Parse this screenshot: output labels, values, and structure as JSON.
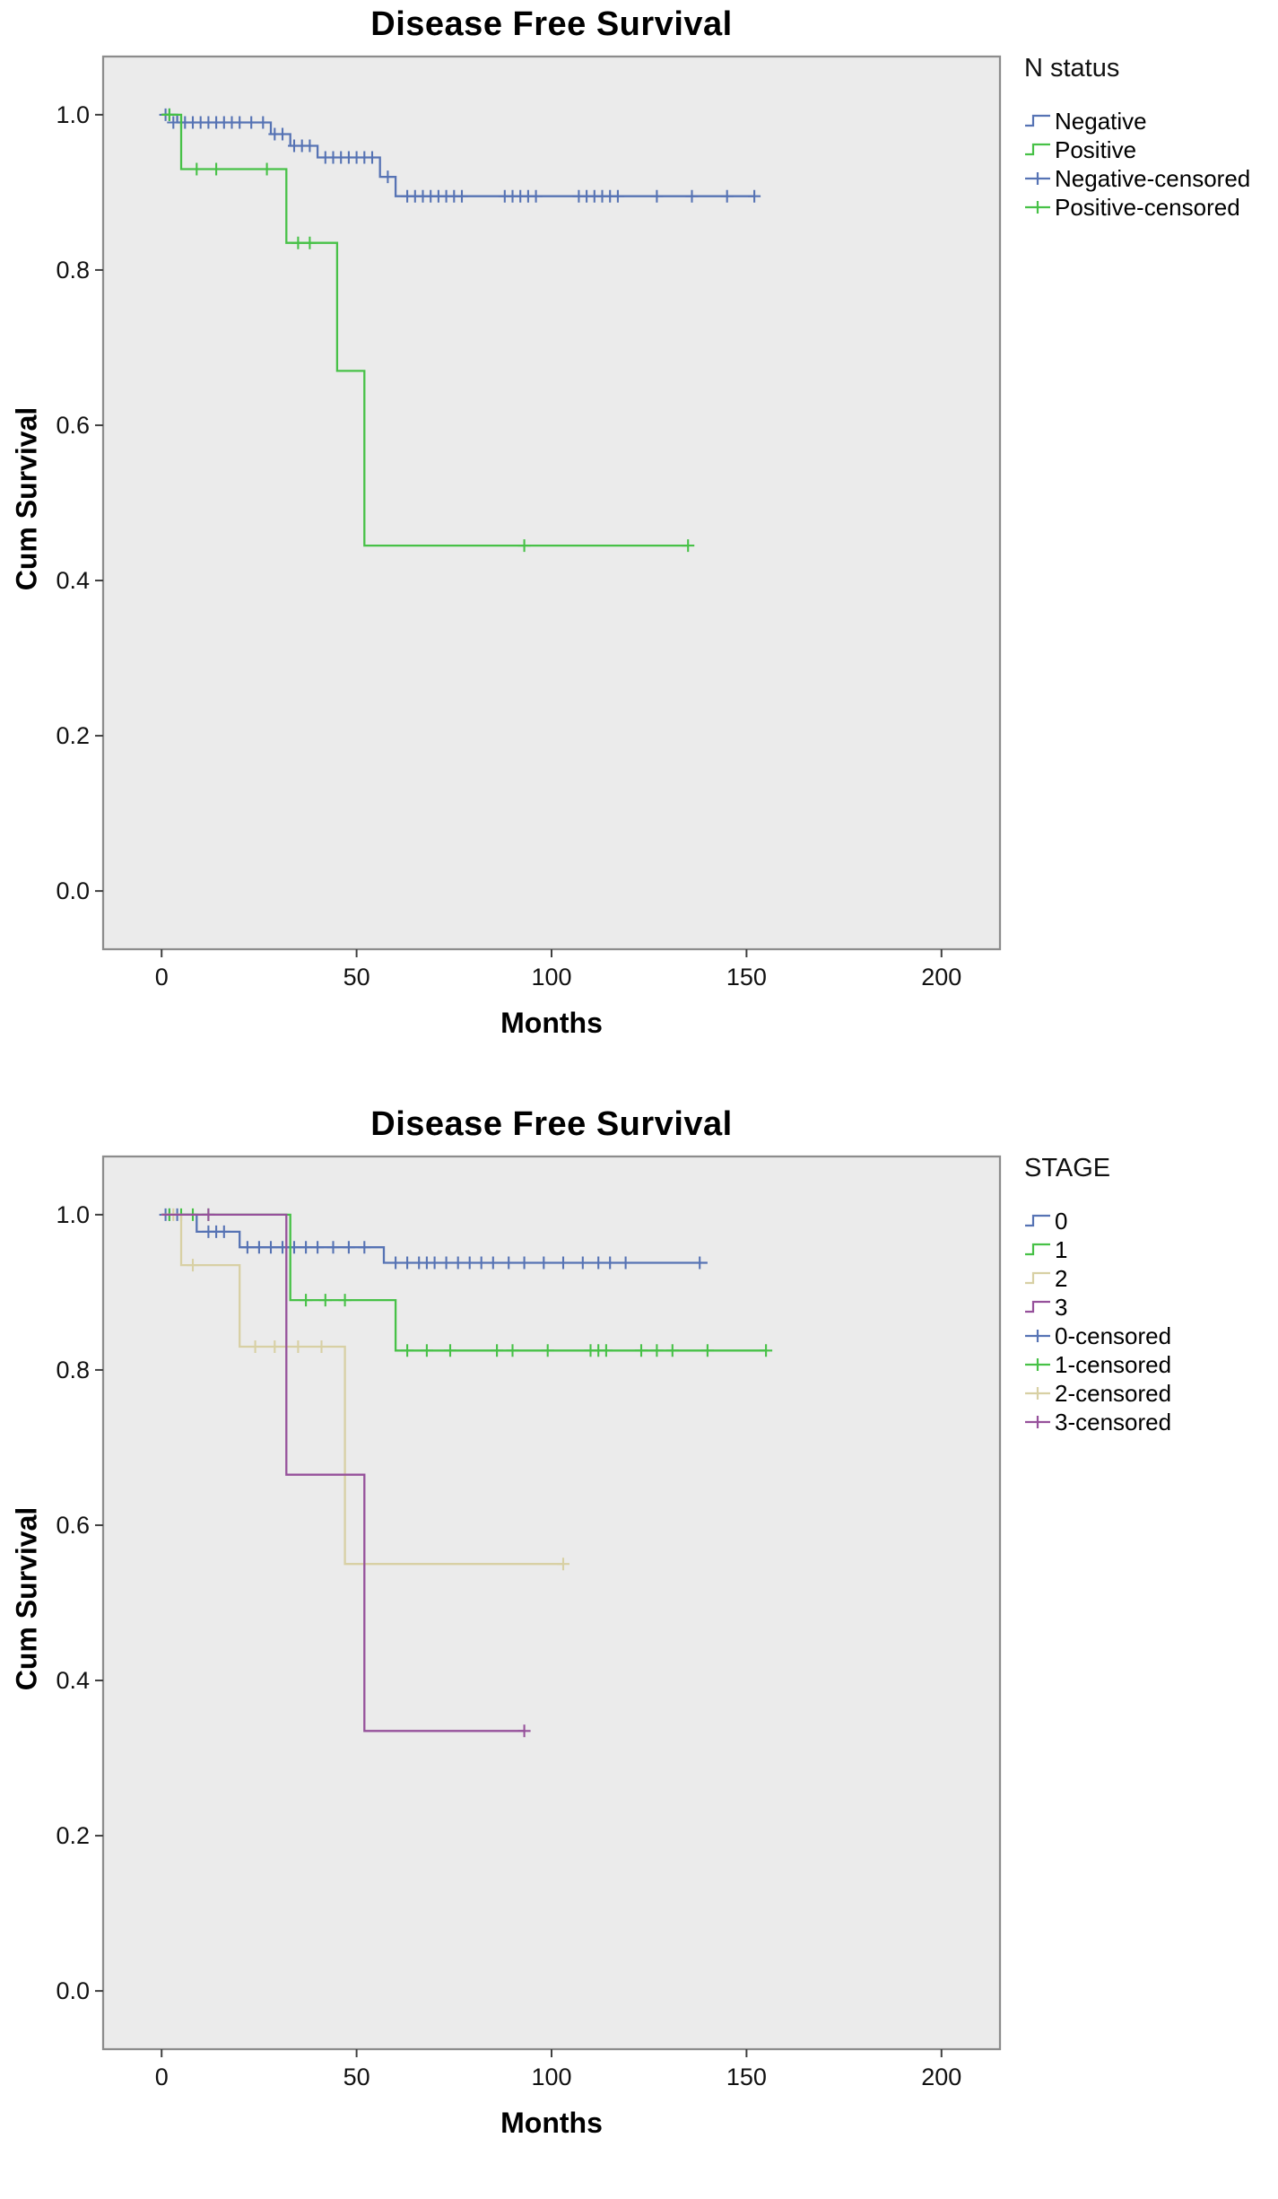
{
  "chart_data": [
    {
      "type": "line",
      "subtype": "kaplan-meier-step",
      "title": "Disease Free Survival",
      "xlabel": "Months",
      "ylabel": "Cum Survival",
      "legend_title": "N status",
      "legend_position": "right",
      "grid": false,
      "background": "#ebebeb",
      "frame_color": "#8c8c8c",
      "xlim": [
        -15,
        215
      ],
      "ylim": [
        -0.075,
        1.075
      ],
      "xticks": [
        0,
        50,
        100,
        150,
        200
      ],
      "xtick_labels": [
        "0",
        "50",
        "100",
        "150",
        "200"
      ],
      "yticks": [
        0,
        0.2,
        0.4,
        0.6,
        0.8,
        1.0
      ],
      "ytick_labels": [
        "0.0",
        "0.2",
        "0.4",
        "0.6",
        "0.8",
        "1.0"
      ],
      "series": [
        {
          "name": "Negative",
          "color": "#5673b4",
          "points": [
            [
              0,
              1.0
            ],
            [
              4,
              0.99
            ],
            [
              28,
              0.975
            ],
            [
              33,
              0.96
            ],
            [
              40,
              0.945
            ],
            [
              56,
              0.92
            ],
            [
              60,
              0.895
            ],
            [
              152,
              0.895
            ]
          ],
          "censored": [
            [
              1,
              1.0
            ],
            [
              2,
              1.0
            ],
            [
              3,
              0.99
            ],
            [
              5,
              0.99
            ],
            [
              6,
              0.99
            ],
            [
              8,
              0.99
            ],
            [
              10,
              0.99
            ],
            [
              12,
              0.99
            ],
            [
              14,
              0.99
            ],
            [
              16,
              0.99
            ],
            [
              18,
              0.99
            ],
            [
              20,
              0.99
            ],
            [
              23,
              0.99
            ],
            [
              26,
              0.99
            ],
            [
              29,
              0.975
            ],
            [
              31,
              0.975
            ],
            [
              34,
              0.96
            ],
            [
              36,
              0.96
            ],
            [
              38,
              0.96
            ],
            [
              42,
              0.945
            ],
            [
              44,
              0.945
            ],
            [
              46,
              0.945
            ],
            [
              48,
              0.945
            ],
            [
              50,
              0.945
            ],
            [
              52,
              0.945
            ],
            [
              54,
              0.945
            ],
            [
              58,
              0.92
            ],
            [
              63,
              0.895
            ],
            [
              65,
              0.895
            ],
            [
              67,
              0.895
            ],
            [
              69,
              0.895
            ],
            [
              71,
              0.895
            ],
            [
              73,
              0.895
            ],
            [
              75,
              0.895
            ],
            [
              77,
              0.895
            ],
            [
              88,
              0.895
            ],
            [
              90,
              0.895
            ],
            [
              92,
              0.895
            ],
            [
              94,
              0.895
            ],
            [
              96,
              0.895
            ],
            [
              107,
              0.895
            ],
            [
              109,
              0.895
            ],
            [
              111,
              0.895
            ],
            [
              113,
              0.895
            ],
            [
              115,
              0.895
            ],
            [
              117,
              0.895
            ],
            [
              127,
              0.895
            ],
            [
              136,
              0.895
            ],
            [
              145,
              0.895
            ],
            [
              152,
              0.895
            ]
          ]
        },
        {
          "name": "Positive",
          "color": "#47c147",
          "points": [
            [
              0,
              1.0
            ],
            [
              5,
              0.93
            ],
            [
              32,
              0.835
            ],
            [
              45,
              0.67
            ],
            [
              52,
              0.445
            ],
            [
              135,
              0.445
            ]
          ],
          "censored": [
            [
              2,
              1.0
            ],
            [
              9,
              0.93
            ],
            [
              14,
              0.93
            ],
            [
              27,
              0.93
            ],
            [
              35,
              0.835
            ],
            [
              38,
              0.835
            ],
            [
              93,
              0.445
            ],
            [
              135,
              0.445
            ]
          ]
        }
      ],
      "legend": [
        {
          "label": "Negative",
          "color": "#5673b4",
          "marker": "line"
        },
        {
          "label": "Positive",
          "color": "#47c147",
          "marker": "line"
        },
        {
          "label": "Negative-censored",
          "color": "#5673b4",
          "marker": "plus"
        },
        {
          "label": "Positive-censored",
          "color": "#47c147",
          "marker": "plus"
        }
      ]
    },
    {
      "type": "line",
      "subtype": "kaplan-meier-step",
      "title": "Disease Free Survival",
      "xlabel": "Months",
      "ylabel": "Cum Survival",
      "legend_title": "STAGE",
      "legend_position": "right",
      "grid": false,
      "background": "#ebebeb",
      "frame_color": "#8c8c8c",
      "xlim": [
        -15,
        215
      ],
      "ylim": [
        -0.075,
        1.075
      ],
      "xticks": [
        0,
        50,
        100,
        150,
        200
      ],
      "xtick_labels": [
        "0",
        "50",
        "100",
        "150",
        "200"
      ],
      "yticks": [
        0,
        0.2,
        0.4,
        0.6,
        0.8,
        1.0
      ],
      "ytick_labels": [
        "0.0",
        "0.2",
        "0.4",
        "0.6",
        "0.8",
        "1.0"
      ],
      "series": [
        {
          "name": "0",
          "color": "#5673b4",
          "points": [
            [
              0,
              1.0
            ],
            [
              9,
              0.978
            ],
            [
              20,
              0.958
            ],
            [
              57,
              0.938
            ],
            [
              140,
              0.938
            ]
          ],
          "censored": [
            [
              1,
              1.0
            ],
            [
              2,
              1.0
            ],
            [
              4,
              1.0
            ],
            [
              12,
              0.978
            ],
            [
              14,
              0.978
            ],
            [
              16,
              0.978
            ],
            [
              22,
              0.958
            ],
            [
              25,
              0.958
            ],
            [
              28,
              0.958
            ],
            [
              31,
              0.958
            ],
            [
              34,
              0.958
            ],
            [
              37,
              0.958
            ],
            [
              40,
              0.958
            ],
            [
              44,
              0.958
            ],
            [
              48,
              0.958
            ],
            [
              52,
              0.958
            ],
            [
              60,
              0.938
            ],
            [
              63,
              0.938
            ],
            [
              66,
              0.938
            ],
            [
              68,
              0.938
            ],
            [
              70,
              0.938
            ],
            [
              73,
              0.938
            ],
            [
              76,
              0.938
            ],
            [
              79,
              0.938
            ],
            [
              82,
              0.938
            ],
            [
              85,
              0.938
            ],
            [
              89,
              0.938
            ],
            [
              93,
              0.938
            ],
            [
              98,
              0.938
            ],
            [
              103,
              0.938
            ],
            [
              108,
              0.938
            ],
            [
              112,
              0.938
            ],
            [
              115,
              0.938
            ],
            [
              119,
              0.938
            ],
            [
              138,
              0.938
            ]
          ]
        },
        {
          "name": "1",
          "color": "#47c147",
          "points": [
            [
              0,
              1.0
            ],
            [
              33,
              0.89
            ],
            [
              60,
              0.825
            ],
            [
              155,
              0.825
            ]
          ],
          "censored": [
            [
              2,
              1.0
            ],
            [
              5,
              1.0
            ],
            [
              8,
              1.0
            ],
            [
              12,
              1.0
            ],
            [
              37,
              0.89
            ],
            [
              42,
              0.89
            ],
            [
              47,
              0.89
            ],
            [
              63,
              0.825
            ],
            [
              68,
              0.825
            ],
            [
              74,
              0.825
            ],
            [
              86,
              0.825
            ],
            [
              90,
              0.825
            ],
            [
              99,
              0.825
            ],
            [
              110,
              0.825
            ],
            [
              112,
              0.825
            ],
            [
              114,
              0.825
            ],
            [
              123,
              0.825
            ],
            [
              127,
              0.825
            ],
            [
              131,
              0.825
            ],
            [
              140,
              0.825
            ],
            [
              155,
              0.825
            ]
          ]
        },
        {
          "name": "2",
          "color": "#d8d0a4",
          "points": [
            [
              0,
              1.0
            ],
            [
              5,
              0.935
            ],
            [
              20,
              0.83
            ],
            [
              47,
              0.55
            ],
            [
              103,
              0.55
            ]
          ],
          "censored": [
            [
              3,
              1.0
            ],
            [
              8,
              0.935
            ],
            [
              24,
              0.83
            ],
            [
              29,
              0.83
            ],
            [
              35,
              0.83
            ],
            [
              41,
              0.83
            ],
            [
              103,
              0.55
            ]
          ]
        },
        {
          "name": "3",
          "color": "#96519b",
          "points": [
            [
              0,
              1.0
            ],
            [
              32,
              0.665
            ],
            [
              52,
              0.335
            ],
            [
              93,
              0.335
            ]
          ],
          "censored": [
            [
              12,
              1.0
            ],
            [
              93,
              0.335
            ]
          ]
        }
      ],
      "legend": [
        {
          "label": "0",
          "color": "#5673b4",
          "marker": "line"
        },
        {
          "label": "1",
          "color": "#47c147",
          "marker": "line"
        },
        {
          "label": "2",
          "color": "#d8d0a4",
          "marker": "line"
        },
        {
          "label": "3",
          "color": "#96519b",
          "marker": "line"
        },
        {
          "label": "0-censored",
          "color": "#5673b4",
          "marker": "plus"
        },
        {
          "label": "1-censored",
          "color": "#47c147",
          "marker": "plus"
        },
        {
          "label": "2-censored",
          "color": "#d8d0a4",
          "marker": "plus"
        },
        {
          "label": "3-censored",
          "color": "#96519b",
          "marker": "plus"
        }
      ]
    }
  ]
}
